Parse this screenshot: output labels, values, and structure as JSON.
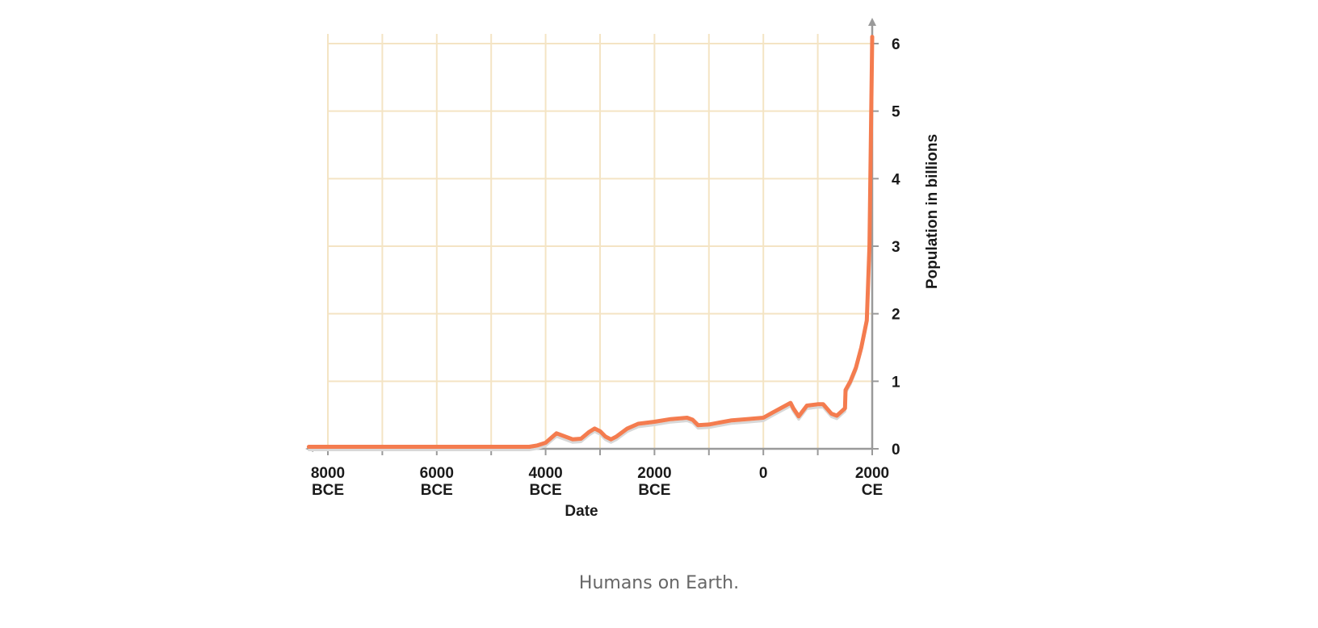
{
  "caption": "Humans on Earth.",
  "colors": {
    "line": "#f47c4f",
    "grid": "#f4e4c4",
    "axis": "#9a9a9a",
    "shadow": "#d8d8d8"
  },
  "chart_data": {
    "type": "line",
    "title": "",
    "xlabel": "Date",
    "ylabel": "Population in billions",
    "xlim": [
      -8000,
      2000
    ],
    "ylim": [
      0,
      6
    ],
    "grid": true,
    "x_ticks": [
      {
        "value": -8000,
        "line1": "8000",
        "line2": "BCE"
      },
      {
        "value": -6000,
        "line1": "6000",
        "line2": "BCE"
      },
      {
        "value": -4000,
        "line1": "4000",
        "line2": "BCE"
      },
      {
        "value": -2000,
        "line1": "2000",
        "line2": "BCE"
      },
      {
        "value": 0,
        "line1": "0",
        "line2": ""
      },
      {
        "value": 2000,
        "line1": "2000",
        "line2": "CE"
      }
    ],
    "y_ticks": [
      0,
      1,
      2,
      3,
      4,
      5,
      6
    ],
    "series": [
      {
        "x": [
          -8350,
          -4300,
          -4150,
          -4000,
          -3900,
          -3800,
          -3700,
          -3500,
          -3350,
          -3200,
          -3100,
          -3000,
          -2900,
          -2800,
          -2700,
          -2500,
          -2300,
          -2000,
          -1700,
          -1400,
          -1300,
          -1200,
          -1000,
          -600,
          -300,
          0,
          200,
          500,
          550,
          650,
          800,
          1000,
          1100,
          1250,
          1350,
          1500,
          1510,
          1600,
          1700,
          1800,
          1900,
          1950,
          2000
        ],
        "y": [
          0.03,
          0.03,
          0.05,
          0.09,
          0.16,
          0.23,
          0.2,
          0.14,
          0.15,
          0.25,
          0.3,
          0.26,
          0.18,
          0.14,
          0.18,
          0.3,
          0.37,
          0.4,
          0.44,
          0.46,
          0.43,
          0.35,
          0.36,
          0.42,
          0.44,
          0.46,
          0.55,
          0.68,
          0.6,
          0.48,
          0.64,
          0.66,
          0.66,
          0.52,
          0.49,
          0.6,
          0.87,
          1.0,
          1.2,
          1.5,
          1.9,
          3.0,
          6.1
        ]
      }
    ]
  }
}
